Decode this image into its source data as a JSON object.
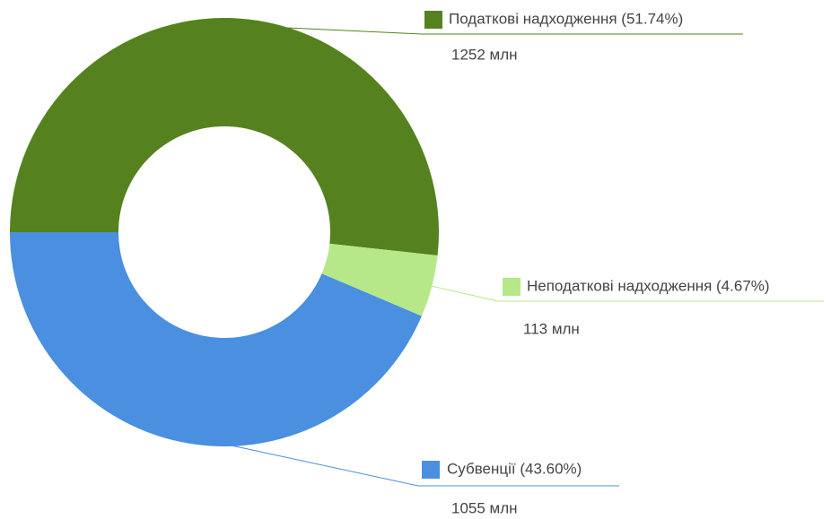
{
  "chart_data": {
    "type": "donut",
    "categories": [
      "Податкові надходження (51.74%)",
      "Неподаткові надходження (4.67%)",
      "Субвенції (43.60%)"
    ],
    "values": [
      1252,
      113,
      1055
    ],
    "value_labels": [
      "1252 млн",
      "113 млн",
      "1055 млн"
    ],
    "colors": [
      "#55821f",
      "#b6e88a",
      "#4a8fe0"
    ]
  }
}
